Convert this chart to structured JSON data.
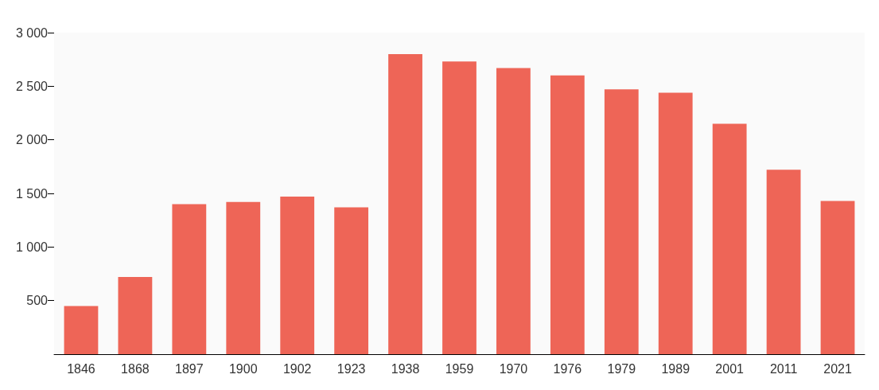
{
  "chart_data": {
    "type": "bar",
    "categories": [
      "1846",
      "1868",
      "1897",
      "1900",
      "1902",
      "1923",
      "1938",
      "1959",
      "1970",
      "1976",
      "1979",
      "1989",
      "2001",
      "2011",
      "2021"
    ],
    "values": [
      450,
      720,
      1400,
      1420,
      1470,
      1370,
      2800,
      2730,
      2670,
      2600,
      2470,
      2440,
      2150,
      1720,
      1430
    ],
    "color": "#ee6557",
    "ylim": [
      0,
      3000
    ],
    "yticks": [
      500,
      {
        "value": 1000,
        "label": "1 000"
      },
      {
        "value": 1500,
        "label": "1 500"
      },
      {
        "value": 2000,
        "label": "2 000"
      },
      {
        "value": 2500,
        "label": "2 500"
      },
      {
        "value": 3000,
        "label": "3 000"
      }
    ],
    "grid": false
  }
}
